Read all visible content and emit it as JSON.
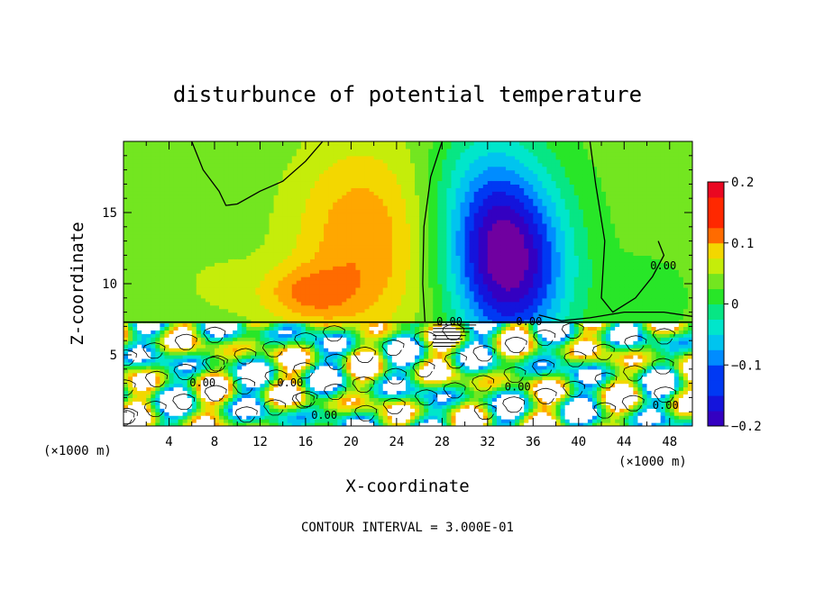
{
  "chart_data": {
    "type": "heatmap",
    "title": "disturbunce of potential temperature",
    "xlabel": "X-coordinate",
    "ylabel": "Z-coordinate",
    "x_unit": "(×1000 m)",
    "x_unit_right": "(×1000 m)",
    "xlim": [
      0,
      50
    ],
    "ylim": [
      0,
      20
    ],
    "x_ticks": [
      4,
      8,
      12,
      16,
      20,
      24,
      28,
      32,
      36,
      40,
      44,
      48
    ],
    "y_ticks": [
      5,
      10,
      15
    ],
    "colorbar": {
      "vmin": -0.2,
      "vmax": 0.2,
      "tick_values": [
        0.2,
        0.1,
        0,
        -0.1,
        -0.2
      ],
      "tick_labels": [
        "0.2",
        "0.1",
        "0",
        "−0.1",
        "−0.2"
      ]
    },
    "contour_labels": [
      {
        "text": "0.00",
        "x": 5.8,
        "z": 2.8
      },
      {
        "text": "0.00",
        "x": 13.5,
        "z": 2.8
      },
      {
        "text": "0.00",
        "x": 16.5,
        "z": 0.5
      },
      {
        "text": "0.00",
        "x": 27.5,
        "z": 7.1
      },
      {
        "text": "0.00",
        "x": 34.5,
        "z": 7.1
      },
      {
        "text": "0.00",
        "x": 33.5,
        "z": 2.5
      },
      {
        "text": "0.00",
        "x": 46.3,
        "z": 11.0
      },
      {
        "text": "0.00",
        "x": 46.5,
        "z": 1.2
      }
    ],
    "footnote": "CONTOUR INTERVAL = 3.000E-01"
  }
}
